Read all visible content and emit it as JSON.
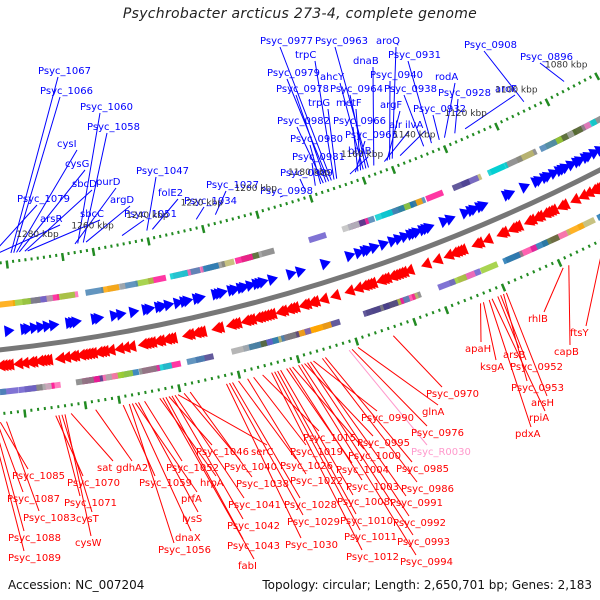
{
  "title": "Psychrobacter arcticus 273-4, complete genome",
  "footer": {
    "accession": "Accession: NC_007204",
    "stats": "Topology: circular; Length: 2,650,701 bp; Genes: 2,183"
  },
  "colors": {
    "forward_strand": "#0000ff",
    "reverse_strand": "#ff0000",
    "rna": "#ff99cc",
    "tick": "#228b22",
    "backbone": "#777777"
  },
  "ticks_kbp": [
    "1080 kbp",
    "1100 kbp",
    "1120 kbp",
    "1140 kbp",
    "1160 kbp",
    "1180 kbp",
    "1200 kbp",
    "1220 kbp",
    "1240 kbp",
    "1260 kbp",
    "1280 kbp"
  ],
  "forward_labels": [
    {
      "text": "Psyc_1067",
      "kbp": 1289
    },
    {
      "text": "Psyc_1066",
      "kbp": 1288
    },
    {
      "text": "Psyc_1060",
      "kbp": 1265
    },
    {
      "text": "Psyc_1058",
      "kbp": 1263
    },
    {
      "text": "cysI",
      "kbp": 1287
    },
    {
      "text": "cysG",
      "kbp": 1286
    },
    {
      "text": "sbcD",
      "kbp": 1284
    },
    {
      "text": "purD",
      "kbp": 1266
    },
    {
      "text": "argD",
      "kbp": 1262
    },
    {
      "text": "Psyc_1079",
      "kbp": 1296
    },
    {
      "text": "arsR",
      "kbp": 1295
    },
    {
      "text": "sbcC",
      "kbp": 1283
    },
    {
      "text": "Psyc_1047",
      "kbp": 1240
    },
    {
      "text": "folE2",
      "kbp": 1238
    },
    {
      "text": "Psyc_1051",
      "kbp": 1249
    },
    {
      "text": "Psyc_1034",
      "kbp": 1222
    },
    {
      "text": "Psyc_1027",
      "kbp": 1215
    },
    {
      "text": "Psyc_0998",
      "kbp": 1190
    },
    {
      "text": "Psyc_0989",
      "kbp": 1182
    },
    {
      "text": "Psyc_0981",
      "kbp": 1178
    },
    {
      "text": "Psyc_0980",
      "kbp": 1176
    },
    {
      "text": "Psyc_0982",
      "kbp": 1175
    },
    {
      "text": "Psyc_0978",
      "kbp": 1174
    },
    {
      "text": "Psyc_0979",
      "kbp": 1173
    },
    {
      "text": "Psyc_0977",
      "kbp": 1172
    },
    {
      "text": "trpC",
      "kbp": 1171
    },
    {
      "text": "trpG",
      "kbp": 1170
    },
    {
      "text": "btuB",
      "kbp": 1165
    },
    {
      "text": "Psyc_0965",
      "kbp": 1163
    },
    {
      "text": "Psyc_0966",
      "kbp": 1162
    },
    {
      "text": "metF",
      "kbp": 1161
    },
    {
      "text": "ahcY",
      "kbp": 1160
    },
    {
      "text": "Psyc_0964",
      "kbp": 1159
    },
    {
      "text": "Psyc_0963",
      "kbp": 1158
    },
    {
      "text": "dnaB",
      "kbp": 1156
    },
    {
      "text": "alr",
      "kbp": 1152
    },
    {
      "text": "argF",
      "kbp": 1151
    },
    {
      "text": "Psyc_0940",
      "kbp": 1150
    },
    {
      "text": "aroQ",
      "kbp": 1149
    },
    {
      "text": "ilvA",
      "kbp": 1146
    },
    {
      "text": "Psyc_0938",
      "kbp": 1137
    },
    {
      "text": "Psyc_0931",
      "kbp": 1134
    },
    {
      "text": "Psyc_0932",
      "kbp": 1131
    },
    {
      "text": "rodA",
      "kbp": 1129
    },
    {
      "text": "Psyc_0928",
      "kbp": 1125
    },
    {
      "text": "aroF",
      "kbp": 1121
    },
    {
      "text": "Psyc_0908",
      "kbp": 1098
    },
    {
      "text": "Psyc_0896",
      "kbp": 1082
    }
  ],
  "reverse_labels": [
    {
      "text": "Psyc_1085",
      "kbp": 1299
    },
    {
      "text": "Psyc_1087",
      "kbp": 1300
    },
    {
      "text": "Psyc_1083",
      "kbp": 1297
    },
    {
      "text": "Psyc_1088",
      "kbp": 1301
    },
    {
      "text": "Psyc_1089",
      "kbp": 1302
    },
    {
      "text": "Psyc_1070",
      "kbp": 1281
    },
    {
      "text": "Psyc_1071",
      "kbp": 1280
    },
    {
      "text": "cysT",
      "kbp": 1279
    },
    {
      "text": "cysW",
      "kbp": 1278
    },
    {
      "text": "sat",
      "kbp": 1276
    },
    {
      "text": "gdhA2",
      "kbp": 1268
    },
    {
      "text": "Psyc_1059",
      "kbp": 1259
    },
    {
      "text": "Psyc_1052",
      "kbp": 1252
    },
    {
      "text": "prfA",
      "kbp": 1255
    },
    {
      "text": "lysS",
      "kbp": 1254
    },
    {
      "text": "dnaX",
      "kbp": 1256
    },
    {
      "text": "Psyc_1056",
      "kbp": 1257
    },
    {
      "text": "hrpA",
      "kbp": 1247
    },
    {
      "text": "Psyc_1046",
      "kbp": 1244
    },
    {
      "text": "serC",
      "kbp": 1241
    },
    {
      "text": "Psyc_1040",
      "kbp": 1239
    },
    {
      "text": "Psyc_1038",
      "kbp": 1237
    },
    {
      "text": "Psyc_1041",
      "kbp": 1242
    },
    {
      "text": "Psyc_1042",
      "kbp": 1243
    },
    {
      "text": "Psyc_1043",
      "kbp": 1245
    },
    {
      "text": "fabI",
      "kbp": 1246
    },
    {
      "text": "Psyc_1015",
      "kbp": 1213
    },
    {
      "text": "Psyc_1019",
      "kbp": 1216
    },
    {
      "text": "Psyc_1026",
      "kbp": 1221
    },
    {
      "text": "Psyc_1022",
      "kbp": 1218
    },
    {
      "text": "Psyc_1028",
      "kbp": 1223
    },
    {
      "text": "Psyc_1029",
      "kbp": 1224
    },
    {
      "text": "Psyc_1030",
      "kbp": 1225
    },
    {
      "text": "Psyc_0990",
      "kbp": 1196
    },
    {
      "text": "Psyc_0995",
      "kbp": 1199
    },
    {
      "text": "Psyc_1000",
      "kbp": 1203
    },
    {
      "text": "Psyc_1004",
      "kbp": 1205
    },
    {
      "text": "Psyc_1003",
      "kbp": 1204
    },
    {
      "text": "Psyc_1008",
      "kbp": 1207
    },
    {
      "text": "Psyc_1010",
      "kbp": 1208
    },
    {
      "text": "Psyc_1011",
      "kbp": 1209
    },
    {
      "text": "Psyc_1012",
      "kbp": 1210
    },
    {
      "text": "Psyc_0985",
      "kbp": 1192
    },
    {
      "text": "Psyc_0986",
      "kbp": 1193
    },
    {
      "text": "Psyc_0991",
      "kbp": 1197
    },
    {
      "text": "Psyc_0992",
      "kbp": 1198
    },
    {
      "text": "Psyc_0993",
      "kbp": 1200
    },
    {
      "text": "Psyc_0994",
      "kbp": 1201
    },
    {
      "text": "Psyc_0970",
      "kbp": 1169
    },
    {
      "text": "glnA",
      "kbp": 1181
    },
    {
      "text": "Psyc_0976",
      "kbp": 1183
    },
    {
      "text": "Psyc_R0030",
      "kbp": 1184,
      "rna": true
    },
    {
      "text": "apaH",
      "kbp": 1139
    },
    {
      "text": "ksgA",
      "kbp": 1138
    },
    {
      "text": "arsB",
      "kbp": 1133
    },
    {
      "text": "Psyc_0952",
      "kbp": 1132
    },
    {
      "text": "Psyc_0953",
      "kbp": 1131
    },
    {
      "text": "arsH",
      "kbp": 1130
    },
    {
      "text": "rpiA",
      "kbp": 1135
    },
    {
      "text": "pdxA",
      "kbp": 1136
    },
    {
      "text": "rhlB",
      "kbp": 1110
    },
    {
      "text": "capB",
      "kbp": 1108
    },
    {
      "text": "ftsY",
      "kbp": 1096
    }
  ]
}
